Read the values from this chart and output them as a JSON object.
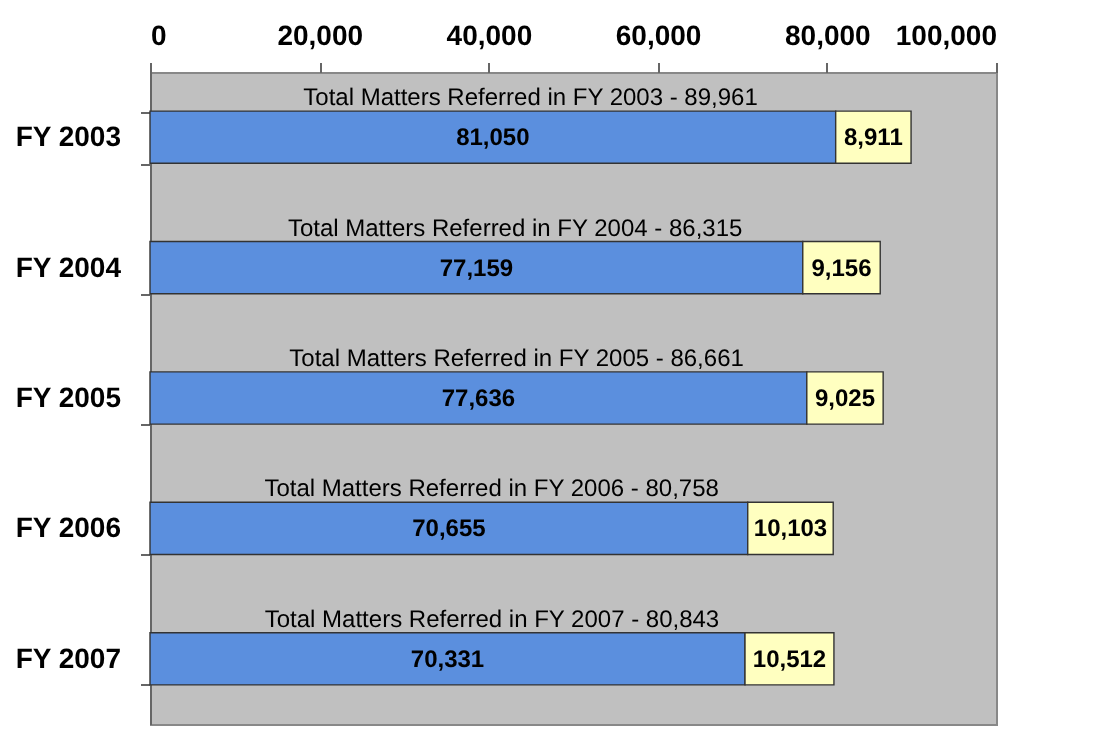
{
  "chart_data": {
    "type": "bar",
    "orientation": "horizontal",
    "stacked": true,
    "categories": [
      "FY 2003",
      "FY 2004",
      "FY 2005",
      "FY 2006",
      "FY 2007"
    ],
    "series": [
      {
        "color": "#5b8fde",
        "values": [
          81050,
          77159,
          77636,
          70655,
          70331
        ],
        "value_labels": [
          "81,050",
          "77,159",
          "77,636",
          "70,655",
          "70,331"
        ]
      },
      {
        "color": "#ffffc0",
        "values": [
          8911,
          9156,
          9025,
          10103,
          10512
        ],
        "value_labels": [
          "8,911",
          "9,156",
          "9,025",
          "10,103",
          "10,512"
        ]
      }
    ],
    "totals": [
      "Total Matters Referred in FY 2003 - 89,961",
      "Total Matters Referred in FY 2004 - 86,315",
      "Total Matters Referred in FY 2005 - 86,661",
      "Total Matters Referred in FY 2006 - 80,758",
      "Total Matters Referred in FY 2007 - 80,843"
    ],
    "xlim": [
      0,
      100000
    ],
    "xticks": [
      0,
      {
        "value": 20000,
        "label": "20,000"
      },
      {
        "value": 40000,
        "label": "40,000"
      },
      {
        "value": 60000,
        "label": "60,000"
      },
      {
        "value": 80000,
        "label": "80,000"
      },
      {
        "value": 100000,
        "label": "100,000"
      }
    ],
    "grid": false
  }
}
